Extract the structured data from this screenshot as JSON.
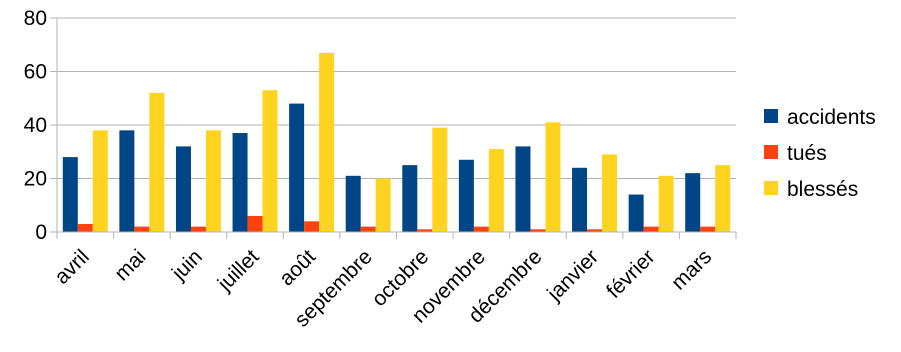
{
  "chart_data": {
    "type": "bar",
    "title": "",
    "xlabel": "",
    "ylabel": "",
    "ylim": [
      0,
      80
    ],
    "yticks": [
      0,
      20,
      40,
      60,
      80
    ],
    "grid": true,
    "legend_position": "right",
    "categories": [
      "avril",
      "mai",
      "juin",
      "juillet",
      "août",
      "septembre",
      "octobre",
      "novembre",
      "décembre",
      "janvier",
      "février",
      "mars"
    ],
    "series": [
      {
        "name": "accidents",
        "color": "#004586",
        "values": [
          28,
          38,
          32,
          37,
          48,
          21,
          25,
          27,
          32,
          24,
          14,
          22
        ]
      },
      {
        "name": "tués",
        "color": "#ff420e",
        "values": [
          3,
          2,
          2,
          6,
          4,
          2,
          1,
          2,
          1,
          1,
          2,
          2
        ]
      },
      {
        "name": "blessés",
        "color": "#ffd320",
        "values": [
          38,
          52,
          38,
          53,
          67,
          20,
          39,
          31,
          41,
          29,
          21,
          25
        ]
      }
    ]
  }
}
